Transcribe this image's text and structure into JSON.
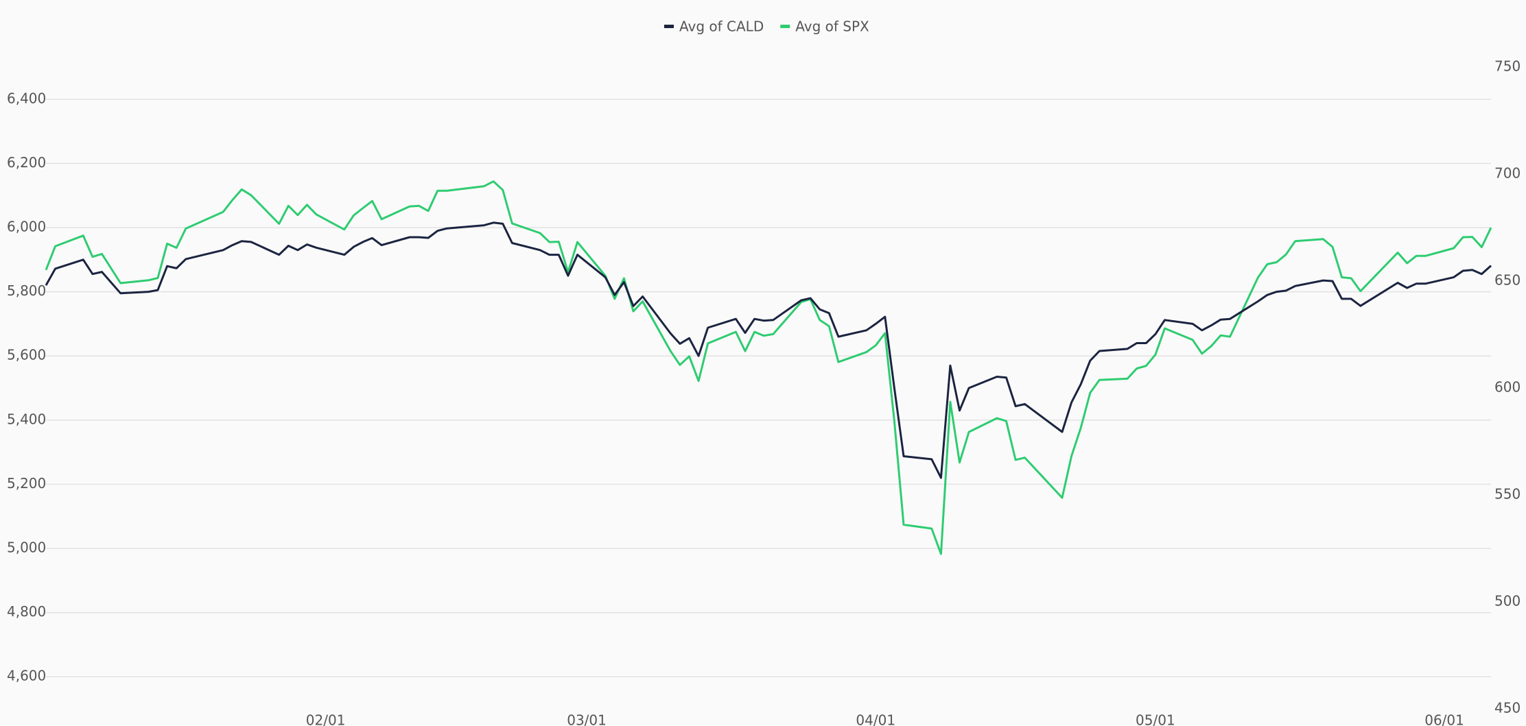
{
  "chart_data": {
    "type": "line",
    "x": [
      "01/02",
      "01/03",
      "01/06",
      "01/07",
      "01/08",
      "01/10",
      "01/13",
      "01/14",
      "01/15",
      "01/16",
      "01/17",
      "01/21",
      "01/22",
      "01/23",
      "01/24",
      "01/27",
      "01/28",
      "01/29",
      "01/30",
      "01/31",
      "02/03",
      "02/04",
      "02/05",
      "02/06",
      "02/07",
      "02/10",
      "02/11",
      "02/12",
      "02/13",
      "02/14",
      "02/18",
      "02/19",
      "02/20",
      "02/21",
      "02/24",
      "02/25",
      "02/26",
      "02/27",
      "02/28",
      "03/03",
      "03/04",
      "03/05",
      "03/06",
      "03/07",
      "03/10",
      "03/11",
      "03/12",
      "03/13",
      "03/14",
      "03/17",
      "03/18",
      "03/19",
      "03/20",
      "03/21",
      "03/24",
      "03/25",
      "03/26",
      "03/27",
      "03/28",
      "03/31",
      "04/01",
      "04/02",
      "04/03",
      "04/04",
      "04/07",
      "04/08",
      "04/09",
      "04/10",
      "04/11",
      "04/14",
      "04/15",
      "04/16",
      "04/17",
      "04/21",
      "04/22",
      "04/23",
      "04/24",
      "04/25",
      "04/28",
      "04/29",
      "04/30",
      "05/01",
      "05/02",
      "05/05",
      "05/06",
      "05/07",
      "05/08",
      "05/09",
      "05/12",
      "05/13",
      "05/14",
      "05/15",
      "05/16",
      "05/19",
      "05/20",
      "05/21",
      "05/22",
      "05/23",
      "05/27",
      "05/28",
      "05/29",
      "05/30",
      "06/02",
      "06/03",
      "06/04",
      "06/05",
      "06/06"
    ],
    "xlim": [
      "01/02",
      "06/06"
    ],
    "xticks": [
      "02/01",
      "03/01",
      "04/01",
      "05/01",
      "06/01"
    ],
    "series": [
      {
        "name": "Avg of CALD",
        "color": "#1b2440",
        "axis": "y2",
        "values": [
          648.0,
          655.8,
          660.0,
          653.3,
          654.3,
          644.3,
          645.0,
          645.8,
          657.0,
          656.0,
          660.3,
          664.5,
          666.8,
          668.7,
          668.3,
          662.3,
          666.5,
          664.5,
          667.1,
          665.6,
          662.3,
          666.0,
          668.3,
          670.1,
          666.8,
          670.5,
          670.5,
          670.2,
          673.5,
          674.6,
          676.1,
          677.3,
          676.8,
          667.8,
          664.5,
          662.3,
          662.3,
          652.5,
          662.3,
          651.8,
          643.5,
          649.5,
          638.3,
          642.8,
          625.5,
          620.7,
          623.3,
          615.0,
          628.2,
          632.3,
          625.8,
          632.3,
          631.5,
          631.8,
          641.0,
          642.0,
          636.8,
          635.0,
          624.0,
          627.0,
          630.0,
          633.3,
          600.0,
          568.1,
          566.7,
          558.0,
          610.5,
          589.5,
          600.0,
          605.3,
          604.9,
          591.5,
          592.5,
          579.5,
          593.3,
          601.8,
          612.8,
          617.3,
          618.3,
          621.0,
          621.0,
          625.2,
          631.8,
          630.0,
          627.0,
          629.3,
          632.0,
          632.3,
          640.5,
          643.5,
          645.0,
          645.5,
          647.7,
          650.3,
          650.0,
          641.7,
          641.7,
          638.4,
          649.2,
          646.8,
          648.8,
          648.8,
          651.8,
          654.8,
          655.2,
          653.3,
          657.2
        ]
      },
      {
        "name": "Avg of SPX",
        "color": "#2ecc71",
        "values": [
          5868,
          5942,
          5975,
          5909,
          5918,
          5827,
          5836,
          5843,
          5950,
          5937,
          5997,
          6049,
          6086,
          6119,
          6101,
          6012,
          6068,
          6039,
          6071,
          6041,
          5994,
          6038,
          6061,
          6083,
          6026,
          6066,
          6068,
          6052,
          6115,
          6115,
          6129,
          6144,
          6117,
          6013,
          5983,
          5955,
          5956,
          5861,
          5955,
          5850,
          5778,
          5842,
          5739,
          5770,
          5615,
          5572,
          5599,
          5522,
          5639,
          5675,
          5615,
          5675,
          5663,
          5668,
          5768,
          5777,
          5712,
          5693,
          5581,
          5612,
          5633,
          5671,
          5397,
          5074,
          5062,
          4983,
          5457,
          5268,
          5363,
          5406,
          5397,
          5276,
          5283,
          5158,
          5288,
          5376,
          5485,
          5525,
          5529,
          5561,
          5569,
          5604,
          5686,
          5650,
          5607,
          5631,
          5664,
          5660,
          5844,
          5886,
          5892,
          5916,
          5958,
          5964,
          5940,
          5845,
          5842,
          5802,
          5922,
          5889,
          5912,
          5912,
          5936,
          5970,
          5971,
          5939,
          6000
        ]
      }
    ],
    "ylim": [
      4500,
      6500
    ],
    "yticks": [
      {
        "value": 4600,
        "label": "4,600"
      },
      {
        "value": 4800,
        "label": "4,800"
      },
      {
        "value": 5000,
        "label": "5,000"
      },
      {
        "value": 5200,
        "label": "5,200"
      },
      {
        "value": 5400,
        "label": "5,400"
      },
      {
        "value": 5600,
        "label": "5,600"
      },
      {
        "value": 5800,
        "label": "5,800"
      },
      {
        "value": 6000,
        "label": "6,000"
      },
      {
        "value": 6200,
        "label": "6,200"
      },
      {
        "value": 6400,
        "label": "6,400"
      }
    ],
    "y2lim": [
      450,
      750
    ],
    "y2ticks": [
      450,
      500,
      550,
      600,
      650,
      700,
      750
    ],
    "grid": true,
    "legend": "top"
  }
}
